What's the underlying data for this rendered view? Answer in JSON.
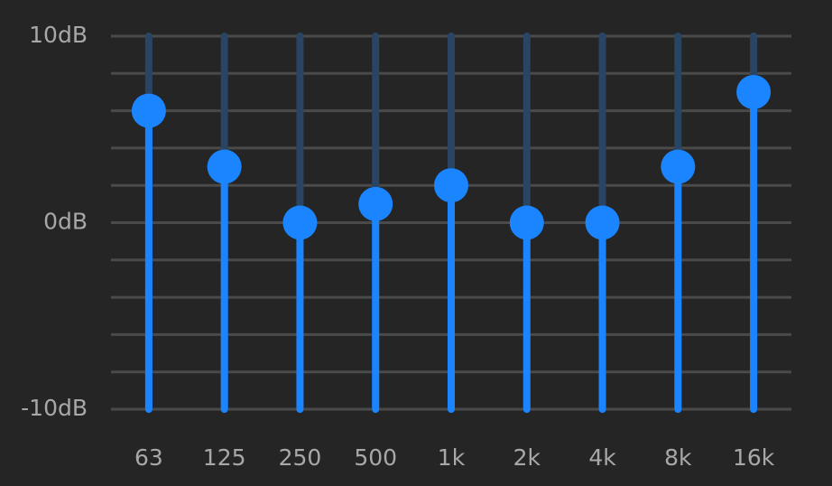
{
  "chart_data": {
    "type": "equalizer",
    "categories": [
      "63",
      "125",
      "250",
      "500",
      "1k",
      "2k",
      "4k",
      "8k",
      "16k"
    ],
    "values": [
      6,
      3,
      0,
      1,
      2,
      0,
      0,
      3,
      7
    ],
    "color": "#1a85ff",
    "track_color": "#2a4463",
    "ylim": [
      -10,
      10
    ],
    "yticks": [
      {
        "value": 10,
        "label": "10dB"
      },
      {
        "value": 0,
        "label": "0dB"
      },
      {
        "value": -10,
        "label": "-10dB"
      }
    ],
    "yminorticks": [
      8,
      6,
      4,
      2,
      -2,
      -4,
      -6,
      -8
    ],
    "grid": true
  }
}
